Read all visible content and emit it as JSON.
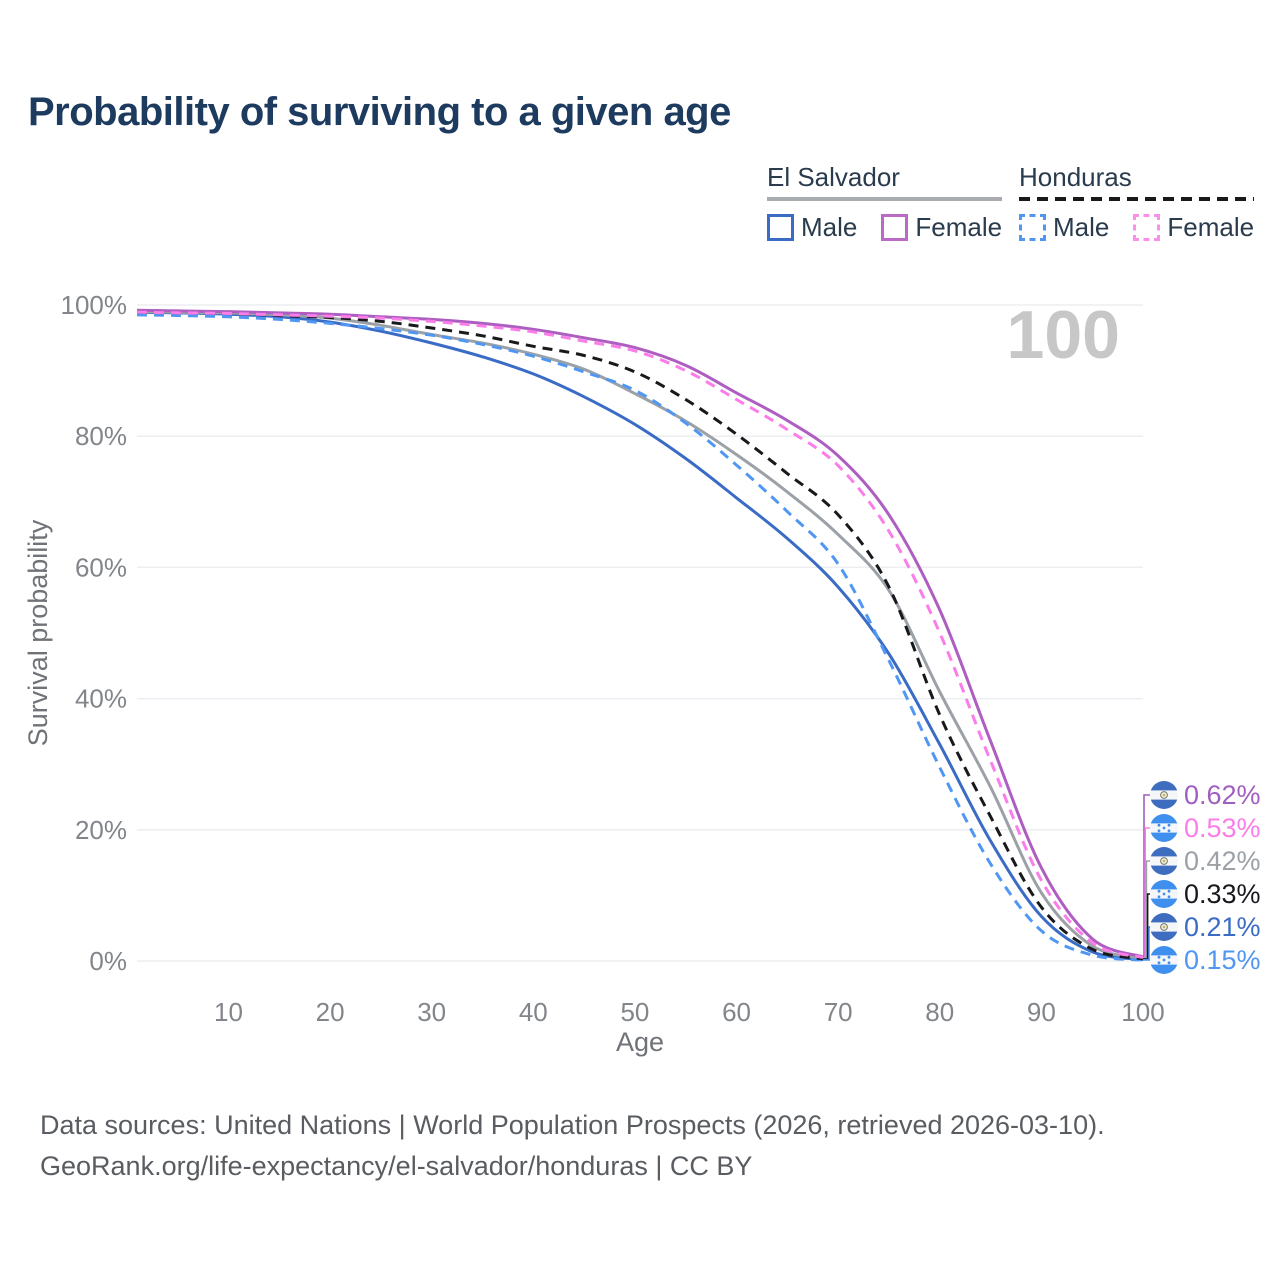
{
  "title": "Probability of surviving to a given age",
  "watermark": "100",
  "legend": {
    "groups": [
      {
        "name": "El Salvador",
        "line_style": "solid",
        "line_color": "#a8acb1",
        "items": [
          {
            "label": "Male",
            "color": "#3a6cc6",
            "style": "solid"
          },
          {
            "label": "Female",
            "color": "#bb6ac6",
            "style": "solid"
          }
        ]
      },
      {
        "name": "Honduras",
        "line_style": "dashed",
        "line_color": "#17191d",
        "items": [
          {
            "label": "Male",
            "color": "#4f97f3",
            "style": "dashed"
          },
          {
            "label": "Female",
            "color": "#fb90ea",
            "style": "dashed"
          }
        ]
      }
    ]
  },
  "flags": {
    "el_salvador": {
      "blue": "#3e6dc0",
      "emblem_fill": "#f2ecda",
      "emblem_ring": "#6e7a70",
      "emblem_dot": "#c9b458"
    },
    "honduras": {
      "blue": "#3f90ee"
    }
  },
  "chart_data": {
    "type": "line",
    "title": "Probability of surviving to a given age",
    "xlabel": "Age",
    "ylabel": "Survival probability",
    "xlim": [
      1,
      100
    ],
    "ylim": [
      0,
      100
    ],
    "grid": "horizontal",
    "x_ticks": [
      10,
      20,
      30,
      40,
      50,
      60,
      70,
      80,
      90,
      100
    ],
    "y_ticks": [
      {
        "v": 0,
        "label": "0%"
      },
      {
        "v": 20,
        "label": "20%"
      },
      {
        "v": 40,
        "label": "40%"
      },
      {
        "v": 60,
        "label": "60%"
      },
      {
        "v": 80,
        "label": "80%"
      },
      {
        "v": 100,
        "label": "100%"
      }
    ],
    "hover_age": "100",
    "series": [
      {
        "id": "el-salvador-male",
        "country": "El Salvador",
        "sex": "Male",
        "style": "solid",
        "color": "#3a6cc6",
        "flag": "el_salvador",
        "end_value_label": "0.21%",
        "end_label_color": "#3a6cc6",
        "points": [
          [
            1,
            98.9
          ],
          [
            5,
            98.8
          ],
          [
            10,
            98.6
          ],
          [
            15,
            98.2
          ],
          [
            20,
            97.4
          ],
          [
            25,
            96.0
          ],
          [
            30,
            94.2
          ],
          [
            35,
            92.1
          ],
          [
            40,
            89.5
          ],
          [
            45,
            86.0
          ],
          [
            50,
            81.8
          ],
          [
            55,
            76.6
          ],
          [
            60,
            70.6
          ],
          [
            65,
            64.4
          ],
          [
            70,
            57.0
          ],
          [
            75,
            46.8
          ],
          [
            80,
            33.0
          ],
          [
            85,
            18.3
          ],
          [
            90,
            6.8
          ],
          [
            95,
            1.4
          ],
          [
            100,
            0.21
          ]
        ]
      },
      {
        "id": "el-salvador-total",
        "country": "El Salvador",
        "sex": "Total",
        "style": "solid",
        "color": "#9ca1a7",
        "flag": "el_salvador",
        "end_value_label": "0.42%",
        "end_label_color": "#9ca1a7",
        "points": [
          [
            1,
            99.0
          ],
          [
            5,
            98.9
          ],
          [
            10,
            98.8
          ],
          [
            15,
            98.5
          ],
          [
            20,
            98.0
          ],
          [
            25,
            96.9
          ],
          [
            30,
            95.5
          ],
          [
            35,
            94.2
          ],
          [
            40,
            92.5
          ],
          [
            45,
            90.2
          ],
          [
            50,
            86.5
          ],
          [
            55,
            82.3
          ],
          [
            60,
            77.2
          ],
          [
            65,
            71.5
          ],
          [
            70,
            65.0
          ],
          [
            75,
            56.5
          ],
          [
            80,
            41.0
          ],
          [
            85,
            26.5
          ],
          [
            90,
            10.4
          ],
          [
            95,
            2.3
          ],
          [
            100,
            0.42
          ]
        ]
      },
      {
        "id": "honduras-male",
        "country": "Honduras",
        "sex": "Male",
        "style": "dashed",
        "color": "#4f97f3",
        "flag": "honduras",
        "end_value_label": "0.15%",
        "end_label_color": "#4f97f3",
        "points": [
          [
            1,
            98.5
          ],
          [
            5,
            98.4
          ],
          [
            10,
            98.2
          ],
          [
            15,
            97.8
          ],
          [
            20,
            97.2
          ],
          [
            25,
            96.4
          ],
          [
            30,
            95.4
          ],
          [
            35,
            94.0
          ],
          [
            40,
            92.2
          ],
          [
            45,
            89.8
          ],
          [
            50,
            87.0
          ],
          [
            55,
            82.0
          ],
          [
            60,
            75.6
          ],
          [
            65,
            68.5
          ],
          [
            70,
            60.5
          ],
          [
            75,
            45.8
          ],
          [
            80,
            29.5
          ],
          [
            85,
            14.8
          ],
          [
            90,
            4.6
          ],
          [
            95,
            0.9
          ],
          [
            100,
            0.15
          ]
        ]
      },
      {
        "id": "honduras-total",
        "country": "Honduras",
        "sex": "Total",
        "style": "dashed",
        "color": "#17191d",
        "flag": "honduras",
        "end_value_label": "0.33%",
        "end_label_color": "#17191d",
        "points": [
          [
            1,
            98.9
          ],
          [
            5,
            98.8
          ],
          [
            10,
            98.7
          ],
          [
            15,
            98.4
          ],
          [
            20,
            98.1
          ],
          [
            25,
            97.5
          ],
          [
            30,
            96.5
          ],
          [
            35,
            95.3
          ],
          [
            40,
            93.7
          ],
          [
            45,
            92.3
          ],
          [
            50,
            89.8
          ],
          [
            55,
            85.6
          ],
          [
            60,
            80.3
          ],
          [
            65,
            74.3
          ],
          [
            70,
            68.0
          ],
          [
            75,
            57.0
          ],
          [
            80,
            37.5
          ],
          [
            85,
            22.0
          ],
          [
            90,
            8.2
          ],
          [
            95,
            1.8
          ],
          [
            100,
            0.33
          ]
        ]
      },
      {
        "id": "el-salvador-female",
        "country": "El Salvador",
        "sex": "Female",
        "style": "solid",
        "color": "#ae5dc1",
        "flag": "el_salvador",
        "end_value_label": "0.62%",
        "end_label_color": "#a05fc0",
        "points": [
          [
            1,
            99.2
          ],
          [
            5,
            99.1
          ],
          [
            10,
            99.0
          ],
          [
            15,
            98.8
          ],
          [
            20,
            98.6
          ],
          [
            25,
            98.2
          ],
          [
            30,
            97.8
          ],
          [
            35,
            97.2
          ],
          [
            40,
            96.3
          ],
          [
            45,
            95.0
          ],
          [
            50,
            93.5
          ],
          [
            55,
            90.8
          ],
          [
            60,
            86.6
          ],
          [
            65,
            82.4
          ],
          [
            70,
            77.0
          ],
          [
            75,
            68.0
          ],
          [
            80,
            53.5
          ],
          [
            85,
            33.5
          ],
          [
            90,
            14.2
          ],
          [
            95,
            3.4
          ],
          [
            100,
            0.62
          ]
        ]
      },
      {
        "id": "honduras-female",
        "country": "Honduras",
        "sex": "Female",
        "style": "dashed",
        "color": "#fb7de9",
        "flag": "honduras",
        "end_value_label": "0.53%",
        "end_label_color": "#fb7de9",
        "points": [
          [
            1,
            98.9
          ],
          [
            5,
            98.8
          ],
          [
            10,
            98.7
          ],
          [
            15,
            98.5
          ],
          [
            20,
            98.3
          ],
          [
            25,
            98.0
          ],
          [
            30,
            97.5
          ],
          [
            35,
            96.8
          ],
          [
            40,
            95.9
          ],
          [
            45,
            94.5
          ],
          [
            50,
            93.0
          ],
          [
            55,
            90.0
          ],
          [
            60,
            85.6
          ],
          [
            65,
            81.0
          ],
          [
            70,
            75.5
          ],
          [
            75,
            65.5
          ],
          [
            80,
            50.0
          ],
          [
            85,
            30.5
          ],
          [
            90,
            12.3
          ],
          [
            95,
            2.8
          ],
          [
            100,
            0.53
          ]
        ]
      }
    ]
  },
  "footer": {
    "line1": "Data sources: United Nations | World Population Prospects (2026, retrieved 2026-03-10).",
    "line2": "GeoRank.org/life-expectancy/el-salvador/honduras | CC BY"
  }
}
